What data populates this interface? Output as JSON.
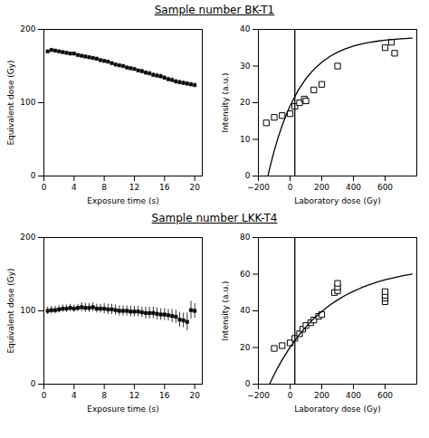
{
  "chart_data": [
    {
      "type": "scatter",
      "title": "Sample number  BK-T1",
      "xlabel": "Exposure time (s)",
      "ylabel": "Equivalent dose (Gy)",
      "xlim": [
        0,
        21
      ],
      "ylim": [
        0,
        200
      ],
      "xticks": [
        0,
        4,
        8,
        12,
        16,
        20
      ],
      "yticks": [
        0,
        100,
        200
      ],
      "series": [
        {
          "type": "scatter",
          "marker": "square",
          "color": "black",
          "x": [
            0.5,
            1,
            1.5,
            2,
            2.5,
            3,
            3.5,
            4,
            4.5,
            5,
            5.5,
            6,
            6.5,
            7,
            7.5,
            8,
            8.5,
            9,
            9.5,
            10,
            10.5,
            11,
            11.5,
            12,
            12.5,
            13,
            13.5,
            14,
            14.5,
            15,
            15.5,
            16,
            16.5,
            17,
            17.5,
            18,
            18.5,
            19,
            19.5,
            20
          ],
          "values": [
            170,
            172,
            171,
            170,
            169,
            168,
            167,
            167,
            165,
            164,
            163,
            162,
            161,
            160,
            158,
            157,
            156,
            154,
            152,
            151,
            150,
            148,
            147,
            146,
            144,
            143,
            141,
            140,
            138,
            137,
            136,
            134,
            132,
            131,
            129,
            128,
            127,
            126,
            125,
            124
          ],
          "yerr": [
            2,
            2,
            2,
            2,
            2,
            2,
            2,
            2,
            2,
            2,
            2,
            2,
            2,
            2,
            2,
            2,
            2,
            2,
            2,
            2,
            2,
            2,
            2,
            2,
            2,
            3,
            3,
            3,
            3,
            3,
            3,
            3,
            3,
            3,
            3,
            3,
            3,
            3,
            3,
            3
          ]
        }
      ]
    },
    {
      "type": "scatter",
      "xlabel": "Laboratory dose (Gy)",
      "ylabel": "Intensity (a.u.)",
      "xlim": [
        -200,
        800
      ],
      "ylim": [
        0,
        40
      ],
      "xticks": [
        -200,
        0,
        200,
        400,
        600
      ],
      "yticks": [
        0,
        10,
        20,
        30,
        40
      ],
      "vline_x": 30,
      "series": [
        {
          "type": "scatter",
          "marker": "square-open",
          "color": "black",
          "x": [
            -150,
            -100,
            -50,
            0,
            30,
            60,
            90,
            100,
            150,
            200,
            300,
            600,
            640,
            660
          ],
          "values": [
            14.5,
            16.0,
            16.5,
            17.0,
            19.0,
            20.0,
            21.0,
            20.5,
            23.5,
            25.0,
            30.0,
            35.0,
            36.5,
            33.5
          ]
        },
        {
          "type": "line",
          "color": "black",
          "x": [
            -140,
            -120,
            -100,
            -75,
            -50,
            -25,
            0,
            50,
            100,
            150,
            200,
            250,
            300,
            350,
            400,
            450,
            500,
            550,
            600,
            650,
            700,
            770
          ],
          "values": [
            0,
            3.6162,
            6.8882,
            10.544,
            13.7701,
            16.6172,
            19.1298,
            23.3038,
            26.5546,
            29.0863,
            31.058,
            32.5936,
            33.7895,
            34.7208,
            35.4462,
            36.0111,
            36.451,
            36.7937,
            37.0605,
            37.2683,
            37.4302,
            37.5985
          ]
        }
      ]
    },
    {
      "type": "scatter",
      "title": "Sample number LKK-T4",
      "xlabel": "Exposure time (s)",
      "ylabel": "Equivalent dose (Gy)",
      "xlim": [
        0,
        21
      ],
      "ylim": [
        0,
        200
      ],
      "xticks": [
        0,
        4,
        8,
        12,
        16,
        20
      ],
      "yticks": [
        0,
        100,
        200
      ],
      "series": [
        {
          "type": "scatter",
          "marker": "square",
          "color": "black",
          "x": [
            0.5,
            1,
            1.5,
            2,
            2.5,
            3,
            3.5,
            4,
            4.5,
            5,
            5.5,
            6,
            6.5,
            7,
            7.5,
            8,
            8.5,
            9,
            9.5,
            10,
            10.5,
            11,
            11.5,
            12,
            12.5,
            13,
            13.5,
            14,
            14.5,
            15,
            15.5,
            16,
            16.5,
            17,
            17.5,
            18,
            18.5,
            19,
            19.5,
            20
          ],
          "values": [
            100,
            101,
            101,
            102,
            103,
            103,
            104,
            103,
            104,
            105,
            104,
            104,
            105,
            103,
            103,
            103,
            102,
            102,
            101,
            100,
            100,
            100,
            99,
            99,
            99,
            98,
            97,
            97,
            97,
            96,
            95,
            95,
            94,
            93,
            92,
            88,
            87,
            85,
            101,
            100
          ],
          "yerr": [
            5,
            5,
            5,
            5,
            5,
            5,
            5,
            5,
            5,
            6,
            6,
            6,
            6,
            6,
            6,
            7,
            7,
            7,
            7,
            7,
            7,
            7,
            7,
            7,
            7,
            7,
            8,
            8,
            8,
            8,
            8,
            8,
            8,
            9,
            9,
            10,
            10,
            12,
            12,
            10
          ]
        }
      ]
    },
    {
      "type": "scatter",
      "xlabel": "Laboratory dose (Gy)",
      "ylabel": "Intensity (a.u.)",
      "xlim": [
        -200,
        800
      ],
      "ylim": [
        0,
        80
      ],
      "xticks": [
        -200,
        0,
        200,
        400,
        600
      ],
      "yticks": [
        0,
        20,
        40,
        60,
        80
      ],
      "vline_x": 30,
      "series": [
        {
          "type": "scatter",
          "marker": "square-open",
          "color": "black",
          "x": [
            -100,
            -50,
            0,
            30,
            60,
            80,
            100,
            130,
            150,
            180,
            200,
            280,
            300,
            300,
            300,
            600,
            600,
            600,
            600
          ],
          "values": [
            19.5,
            21.0,
            22.5,
            25.0,
            27.5,
            30.0,
            32.0,
            33.5,
            35.0,
            37.0,
            38.0,
            50.0,
            51.0,
            53.0,
            55.0,
            45.0,
            47.0,
            48.5,
            50.5
          ]
        },
        {
          "type": "line",
          "color": "black",
          "x": [
            -130,
            -100,
            -75,
            -50,
            0,
            50,
            100,
            150,
            200,
            250,
            300,
            350,
            400,
            450,
            500,
            550,
            600,
            650,
            700,
            770
          ],
          "values": [
            0,
            5.3394,
            9.4522,
            13.2815,
            20.1663,
            26.1347,
            31.3086,
            35.7936,
            39.6816,
            43.0522,
            45.9739,
            48.5066,
            50.7023,
            52.6056,
            54.2556,
            55.6859,
            56.9258,
            58.0007,
            58.9324,
            60.0323
          ]
        }
      ]
    }
  ]
}
